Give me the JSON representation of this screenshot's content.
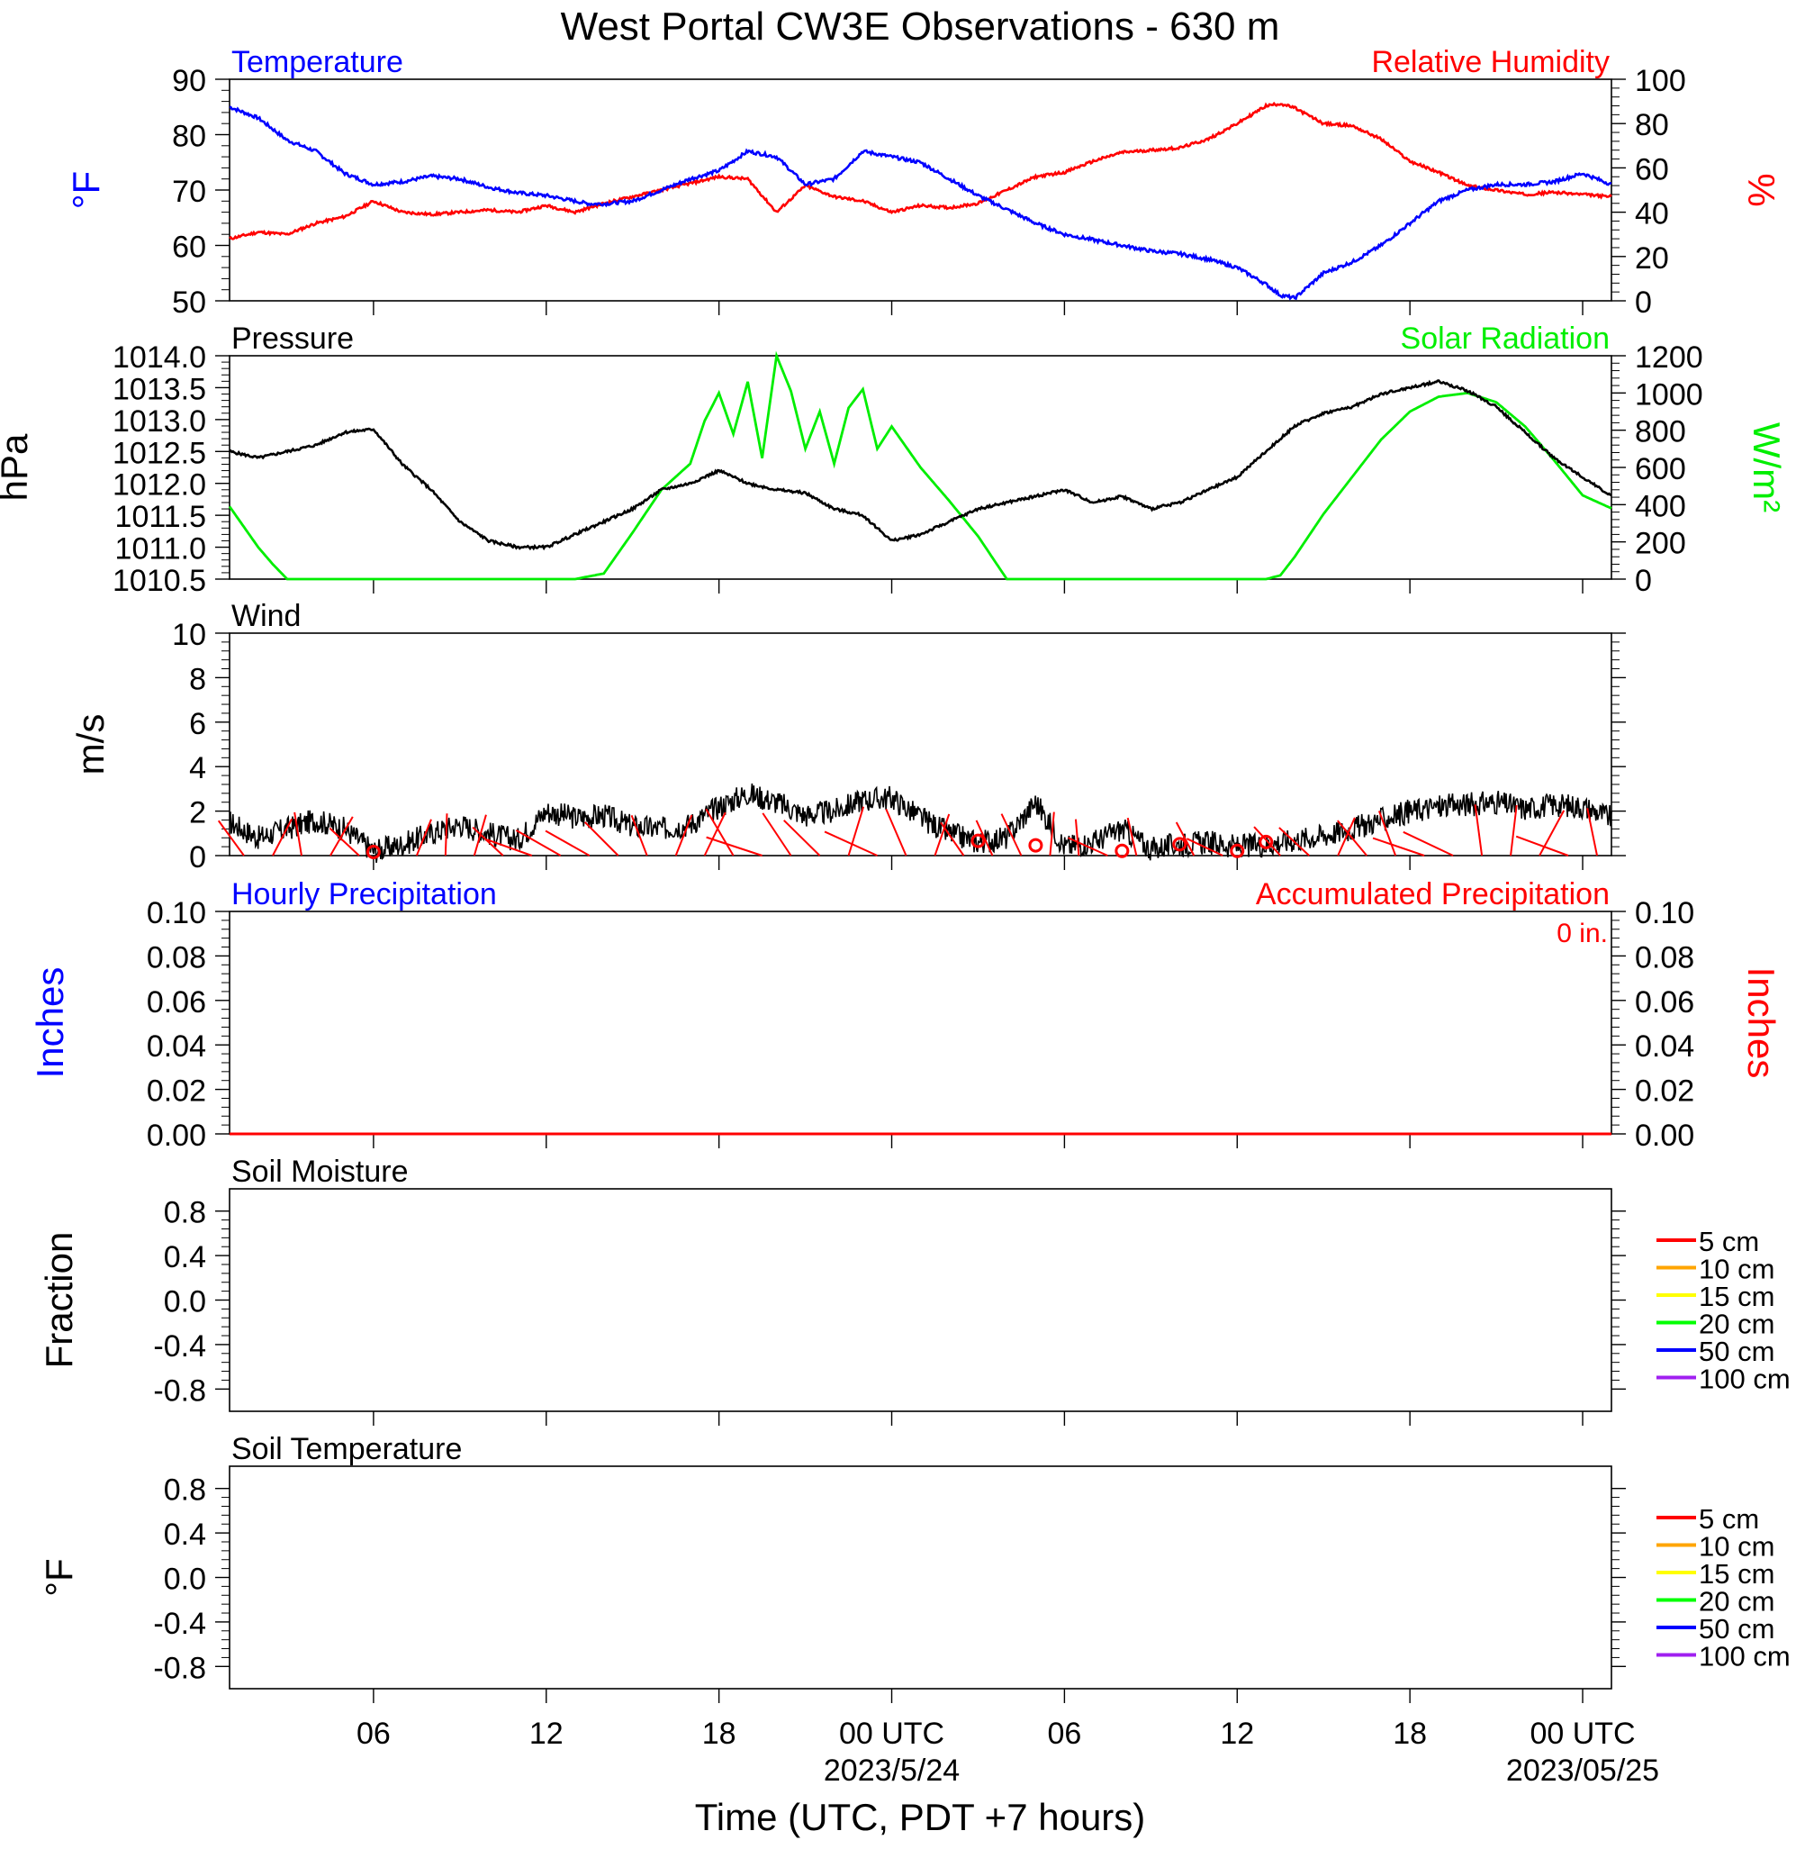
{
  "title": "West Portal CW3E Observations - 630 m",
  "xlabel": "Time (UTC, PDT +7 hours)",
  "x_ticks": [
    {
      "hour": 6,
      "label": "06"
    },
    {
      "hour": 12,
      "label": "12"
    },
    {
      "hour": 18,
      "label": "18"
    },
    {
      "hour": 24,
      "label": "00 UTC",
      "sublabel": "2023/5/24"
    },
    {
      "hour": 30,
      "label": "06"
    },
    {
      "hour": 36,
      "label": "12"
    },
    {
      "hour": 42,
      "label": "18"
    },
    {
      "hour": 48,
      "label": "00 UTC",
      "sublabel": "2023/05/25"
    }
  ],
  "colors": {
    "temperature": "#0000ff",
    "humidity": "#ff0000",
    "pressure": "#000000",
    "solar": "#00ee00",
    "wind": "#000000",
    "wind_barb": "#ff0000",
    "precip_hourly": "#0000ff",
    "precip_accum": "#ff0000"
  },
  "panels": {
    "temp_rh": {
      "title_left": "Temperature",
      "title_right": "Relative Humidity",
      "ylabel_left": "°F",
      "ylabel_right": "%"
    },
    "pressure_solar": {
      "title_left": "Pressure",
      "title_right": "Solar Radiation",
      "ylabel_left": "hPa",
      "ylabel_right": "W/m²"
    },
    "wind": {
      "title_left": "Wind",
      "ylabel_left": "m/s"
    },
    "precip": {
      "title_left": "Hourly Precipitation",
      "title_right": "Accumulated Precipitation",
      "total": "0 in.",
      "ylabel_left": "Inches",
      "ylabel_right": "Inches"
    },
    "soil_moisture": {
      "title_left": "Soil Moisture",
      "ylabel_left": "Fraction"
    },
    "soil_temp": {
      "title_left": "Soil Temperature",
      "ylabel_left": "°F"
    }
  },
  "soil_legend": [
    {
      "label": "5 cm",
      "color": "#ff0000"
    },
    {
      "label": "10 cm",
      "color": "#ffa500"
    },
    {
      "label": "15 cm",
      "color": "#ffff00"
    },
    {
      "label": "20 cm",
      "color": "#00ff00"
    },
    {
      "label": "50 cm",
      "color": "#0000ff"
    },
    {
      "label": "100 cm",
      "color": "#a020f0"
    }
  ],
  "chart_data": [
    {
      "type": "line",
      "title": "Temperature / Relative Humidity",
      "x_unit": "hours since 2023-05-23 01 UTC",
      "xlim": [
        1,
        49
      ],
      "series": [
        {
          "name": "Temperature",
          "axis": "left",
          "ylim": [
            50,
            90
          ],
          "x": [
            1,
            2,
            3,
            4,
            5,
            6,
            7,
            8,
            9,
            10,
            11,
            12,
            13,
            13.5,
            14,
            15,
            16,
            17,
            18,
            19,
            20,
            21,
            22,
            23,
            24,
            25,
            26,
            27,
            28,
            29,
            30,
            31,
            32,
            33,
            34,
            35,
            36,
            37,
            37.5,
            38,
            39,
            40,
            41,
            42,
            43,
            44,
            45,
            46,
            47,
            48,
            48.5,
            49
          ],
          "values": [
            85,
            83,
            79,
            77,
            73,
            71,
            71.5,
            72.5,
            72,
            70.5,
            69.5,
            69,
            68,
            67.5,
            67.5,
            68,
            70,
            72,
            73.5,
            77,
            76,
            71,
            72,
            77,
            76,
            75,
            72,
            69,
            66.5,
            64,
            62,
            61,
            60,
            59,
            58.5,
            57.5,
            56,
            53,
            51,
            50.5,
            55,
            57,
            60,
            64,
            68,
            70,
            71,
            71,
            71.5,
            73,
            72,
            71
          ]
        },
        {
          "name": "Relative Humidity",
          "axis": "right",
          "ylim": [
            0,
            100
          ],
          "x": [
            1,
            2,
            3,
            4,
            5,
            6,
            7,
            8,
            9,
            10,
            11,
            12,
            13,
            14,
            15,
            16,
            17,
            18,
            19,
            20,
            21,
            22,
            23,
            24,
            25,
            26,
            27,
            28,
            29,
            30,
            31,
            32,
            33,
            34,
            35,
            36,
            37,
            37.5,
            38,
            39,
            40,
            41,
            42,
            43,
            44,
            45,
            46,
            47,
            48,
            49
          ],
          "values": [
            28,
            31,
            30,
            35,
            38,
            45,
            40,
            39,
            40,
            41,
            40,
            43,
            40,
            44,
            47,
            50,
            53,
            56,
            55,
            40,
            52,
            47,
            45,
            40,
            43,
            42,
            44,
            50,
            56,
            58,
            63,
            67,
            68,
            69,
            73,
            80,
            88,
            89,
            87,
            80,
            79,
            73,
            63,
            58,
            52,
            50,
            48,
            49,
            48,
            47
          ]
        }
      ]
    },
    {
      "type": "line",
      "title": "Pressure / Solar Radiation",
      "x_unit": "hours since 2023-05-23 01 UTC",
      "xlim": [
        1,
        49
      ],
      "series": [
        {
          "name": "Pressure",
          "axis": "left",
          "ylim": [
            1010.5,
            1014.0
          ],
          "x": [
            1,
            2,
            3,
            4,
            5,
            6,
            7,
            8,
            9,
            10,
            11,
            12,
            13,
            14,
            15,
            16,
            17,
            18,
            19,
            20,
            21,
            22,
            23,
            24,
            25,
            26,
            27,
            28,
            29,
            30,
            31,
            32,
            33,
            34,
            35,
            36,
            37,
            38,
            39,
            40,
            41,
            42,
            43,
            44,
            45,
            46,
            47,
            48,
            49
          ],
          "values": [
            1012.5,
            1012.4,
            1012.5,
            1012.6,
            1012.8,
            1012.85,
            1012.3,
            1011.9,
            1011.4,
            1011.1,
            1011.0,
            1011.0,
            1011.2,
            1011.4,
            1011.6,
            1011.9,
            1012.0,
            1012.2,
            1012.0,
            1011.9,
            1011.85,
            1011.6,
            1011.5,
            1011.1,
            1011.2,
            1011.4,
            1011.6,
            1011.7,
            1011.8,
            1011.9,
            1011.7,
            1011.8,
            1011.6,
            1011.7,
            1011.9,
            1012.1,
            1012.5,
            1012.9,
            1013.1,
            1013.2,
            1013.4,
            1013.5,
            1013.6,
            1013.45,
            1013.2,
            1012.8,
            1012.4,
            1012.1,
            1011.8
          ]
        },
        {
          "name": "Solar Radiation",
          "axis": "right",
          "ylim": [
            0,
            1200
          ],
          "x": [
            1,
            1.5,
            2,
            2.5,
            3,
            4,
            5,
            6,
            7,
            8,
            9,
            10,
            11,
            12,
            12.5,
            13,
            14,
            15,
            16,
            17,
            17.5,
            18,
            18.5,
            19,
            19.5,
            20,
            20.5,
            21,
            21.5,
            22,
            22.5,
            23,
            23.5,
            24,
            25,
            26,
            27,
            28,
            29,
            30,
            31,
            32,
            33,
            34,
            35,
            36,
            37,
            37.5,
            38,
            39,
            40,
            41,
            42,
            43,
            44,
            45,
            46,
            47,
            48,
            49
          ],
          "values": [
            390,
            280,
            170,
            80,
            0,
            0,
            0,
            0,
            0,
            0,
            0,
            0,
            0,
            0,
            0,
            0,
            30,
            250,
            480,
            620,
            850,
            1000,
            780,
            1060,
            650,
            1200,
            1010,
            700,
            900,
            620,
            920,
            1020,
            700,
            820,
            600,
            420,
            230,
            0,
            0,
            0,
            0,
            0,
            0,
            0,
            0,
            0,
            0,
            20,
            120,
            350,
            550,
            750,
            900,
            980,
            1000,
            950,
            820,
            640,
            450,
            380
          ]
        }
      ]
    },
    {
      "type": "line",
      "title": "Wind",
      "ylabel": "m/s",
      "x_unit": "hours since 2023-05-23 01 UTC",
      "xlim": [
        1,
        49
      ],
      "ylim": [
        0,
        10
      ],
      "series": [
        {
          "name": "Wind speed",
          "x": [
            1,
            2,
            3,
            4,
            5,
            6,
            7,
            8,
            9,
            10,
            11,
            12,
            13,
            14,
            15,
            16,
            17,
            18,
            19,
            20,
            21,
            22,
            23,
            24,
            25,
            26,
            27,
            28,
            29,
            30,
            31,
            32,
            33,
            34,
            35,
            36,
            37,
            38,
            39,
            40,
            41,
            42,
            43,
            44,
            45,
            46,
            47,
            48,
            49
          ],
          "values": [
            1.5,
            0.8,
            1.2,
            1.6,
            1.2,
            0.2,
            0.5,
            1.0,
            1.4,
            1.0,
            0.7,
            2.0,
            1.7,
            1.8,
            1.3,
            1.2,
            1.4,
            2.2,
            2.8,
            2.4,
            1.8,
            2.0,
            2.5,
            2.6,
            1.7,
            1.0,
            0.6,
            0.8,
            2.4,
            0.4,
            0.6,
            1.2,
            0.3,
            0.5,
            0.6,
            0.4,
            0.5,
            0.7,
            0.9,
            1.2,
            1.6,
            2.0,
            2.2,
            2.3,
            2.4,
            2.1,
            2.3,
            2.2,
            1.7
          ]
        },
        {
          "name": "Calm (circle markers)",
          "x": [
            6,
            27,
            29,
            32,
            34,
            36,
            37
          ],
          "values": [
            0,
            0.5,
            0.3,
            0.05,
            0.35,
            0.05,
            0.45
          ]
        }
      ]
    },
    {
      "type": "bar",
      "title": "Hourly / Accumulated Precipitation",
      "x_unit": "hours since 2023-05-23 01 UTC",
      "xlim": [
        1,
        49
      ],
      "ylim": [
        0,
        0.1
      ],
      "series": [
        {
          "name": "Hourly Precipitation",
          "x": [
            6,
            12,
            18,
            24,
            30,
            36,
            42,
            48
          ],
          "values": [
            0,
            0,
            0,
            0,
            0,
            0,
            0,
            0
          ]
        },
        {
          "name": "Accumulated Precipitation",
          "x": [
            1,
            49
          ],
          "values": [
            0,
            0
          ]
        }
      ]
    },
    {
      "type": "line",
      "title": "Soil Moisture",
      "ylabel": "Fraction",
      "xlim": [
        1,
        49
      ],
      "ylim": [
        -1.0,
        1.0
      ],
      "series": []
    },
    {
      "type": "line",
      "title": "Soil Temperature",
      "ylabel": "°F",
      "xlim": [
        1,
        49
      ],
      "ylim": [
        -1.0,
        1.0
      ],
      "series": []
    }
  ]
}
